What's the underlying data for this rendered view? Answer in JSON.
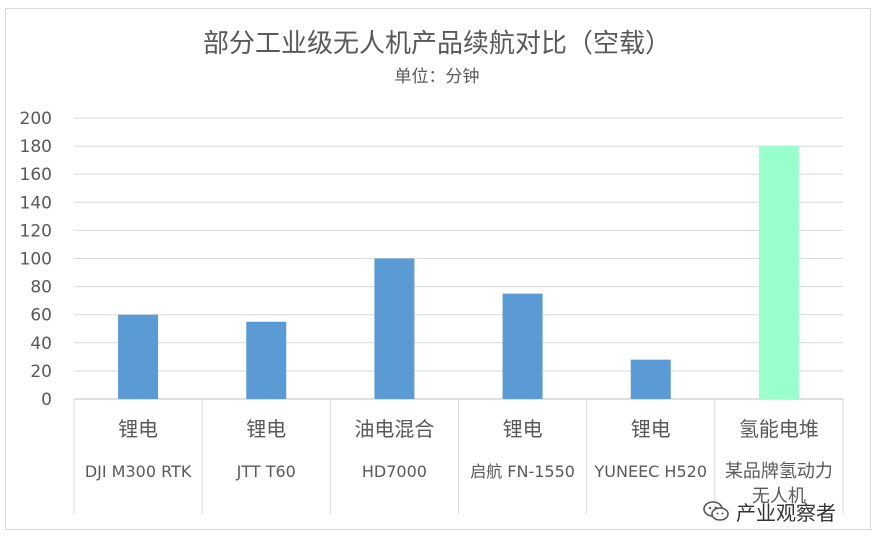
{
  "chart_data": {
    "type": "bar",
    "title": "部分工业级无人机产品续航对比（空载）",
    "subtitle": "单位：分钟",
    "ylim": [
      0,
      200
    ],
    "yticks": [
      0,
      20,
      40,
      60,
      80,
      100,
      120,
      140,
      160,
      180,
      200
    ],
    "grid": true,
    "categories": [
      {
        "group": "锂电",
        "name": "DJI M300 RTK",
        "value": 60,
        "color": "#5b9bd5"
      },
      {
        "group": "锂电",
        "name": "JTT T60",
        "value": 55,
        "color": "#5b9bd5"
      },
      {
        "group": "油电混合",
        "name": "HD7000",
        "value": 100,
        "color": "#5b9bd5"
      },
      {
        "group": "锂电",
        "name": "启航 FN-1550",
        "value": 75,
        "color": "#5b9bd5"
      },
      {
        "group": "锂电",
        "name": "YUNEEC H520",
        "value": 28,
        "color": "#5b9bd5"
      },
      {
        "group": "氢能电堆",
        "name": "某品牌氢动力无人机",
        "value": 180,
        "color": "#99ffcc"
      }
    ],
    "colors": {
      "lithium_bar": "#5b9bd5",
      "hydrogen_bar": "#99ffcc",
      "grid": "#d9d9d9"
    }
  },
  "watermark": {
    "text": "产业观察者",
    "icon": "wechat-icon"
  }
}
